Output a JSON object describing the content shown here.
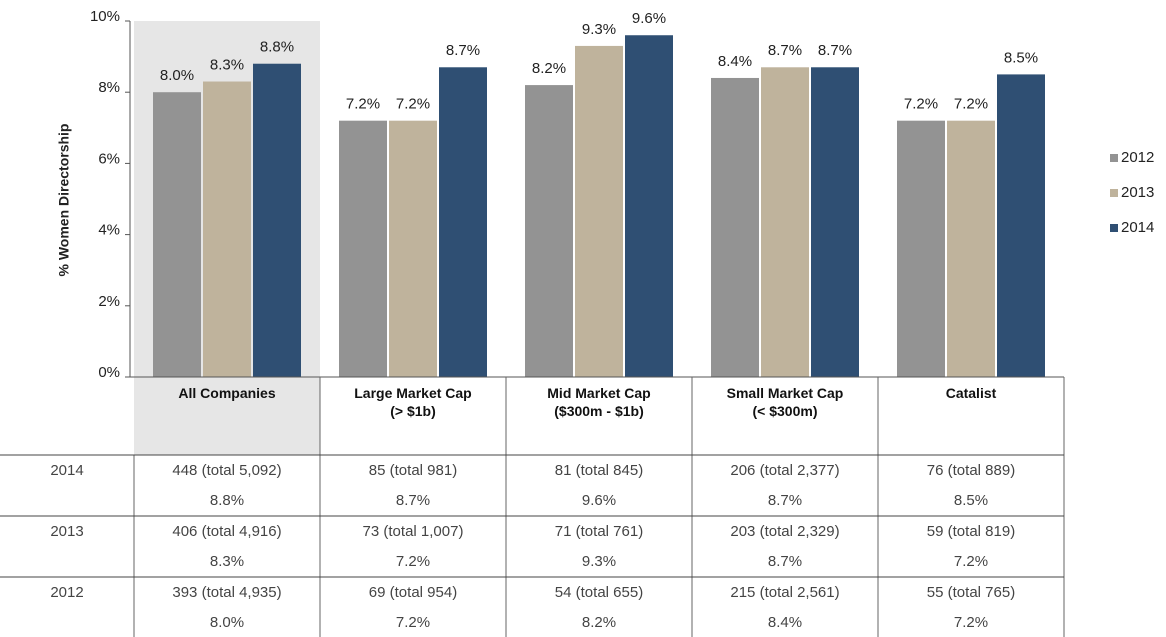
{
  "chart_data": {
    "type": "bar",
    "y_label": "% Women Directorship",
    "categories": [
      "All Companies",
      "Large Market Cap\n(> $1b)",
      "Mid Market Cap\n($300m - $1b)",
      "Small Market Cap\n(< $300m)",
      "Catalist"
    ],
    "series": [
      {
        "name": "2012",
        "color": "#939393",
        "values": [
          8.0,
          7.2,
          8.2,
          8.4,
          7.2
        ],
        "value_labels": [
          "8.0%",
          "7.2%",
          "8.2%",
          "8.4%",
          "7.2%"
        ]
      },
      {
        "name": "2013",
        "color": "#bfb39c",
        "values": [
          8.3,
          7.2,
          9.3,
          8.7,
          7.2
        ],
        "value_labels": [
          "8.3%",
          "7.2%",
          "9.3%",
          "8.7%",
          "7.2%"
        ]
      },
      {
        "name": "2014",
        "color": "#2f4f73",
        "values": [
          8.8,
          8.7,
          9.6,
          8.7,
          8.5
        ],
        "value_labels": [
          "8.8%",
          "8.7%",
          "9.6%",
          "8.7%",
          "8.5%"
        ]
      }
    ],
    "ylim": [
      0,
      10
    ],
    "yticks": [
      {
        "value": 0,
        "label": "0%"
      },
      {
        "value": 2,
        "label": "2%"
      },
      {
        "value": 4,
        "label": "4%"
      },
      {
        "value": 6,
        "label": "6%"
      },
      {
        "value": 8,
        "label": "8%"
      },
      {
        "value": 10,
        "label": "10%"
      }
    ],
    "legend": "right"
  },
  "table": {
    "rows": [
      {
        "year": "2014",
        "cells": [
          [
            "448 (total 5,092)",
            "8.8%"
          ],
          [
            "85 (total 981)",
            "8.7%"
          ],
          [
            "81 (total 845)",
            "9.6%"
          ],
          [
            "206 (total 2,377)",
            "8.7%"
          ],
          [
            "76 (total 889)",
            "8.5%"
          ]
        ]
      },
      {
        "year": "2013",
        "cells": [
          [
            "406 (total 4,916)",
            "8.3%"
          ],
          [
            "73 (total 1,007)",
            "7.2%"
          ],
          [
            "71 (total 761)",
            "9.3%"
          ],
          [
            "203 (total 2,329)",
            "8.7%"
          ],
          [
            "59 (total 819)",
            "7.2%"
          ]
        ]
      },
      {
        "year": "2012",
        "cells": [
          [
            "393 (total 4,935)",
            "8.0%"
          ],
          [
            "69 (total 954)",
            "7.2%"
          ],
          [
            "54 (total 655)",
            "8.2%"
          ],
          [
            "215 (total 2,561)",
            "8.4%"
          ],
          [
            "55 (total 765)",
            "7.2%"
          ]
        ]
      }
    ]
  }
}
